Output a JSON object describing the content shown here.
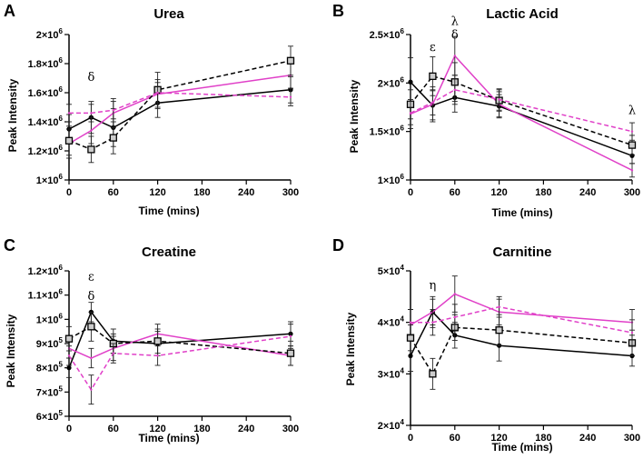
{
  "colors": {
    "black": "#000000",
    "magenta": "#e040c8",
    "marker_fill": "#cccccc"
  },
  "series_legend": [
    {
      "name": "solid-black",
      "color": "#000000",
      "dash": "solid",
      "marker": "circle"
    },
    {
      "name": "solid-magenta",
      "color": "#e040c8",
      "dash": "solid",
      "marker": "none"
    },
    {
      "name": "dashed-black",
      "color": "#000000",
      "dash": "dashed",
      "marker": "square"
    },
    {
      "name": "dashed-magenta",
      "color": "#e040c8",
      "dash": "dashed",
      "marker": "none"
    }
  ],
  "chart_data": [
    {
      "panel": "A",
      "type": "line",
      "title": "Urea",
      "xlabel": "Time (mins)",
      "ylabel": "Peak Intensity",
      "x": [
        0,
        30,
        60,
        120,
        300
      ],
      "xticks": [
        "0",
        "60",
        "120",
        "180",
        "240",
        "300"
      ],
      "xtick_values": [
        0,
        60,
        120,
        180,
        240,
        300
      ],
      "ylim": [
        1000000,
        2000000
      ],
      "yticks": [
        1000000,
        1200000,
        1400000,
        1600000,
        1800000,
        2000000
      ],
      "ytick_mant": [
        "1",
        "1.2",
        "1.4",
        "1.6",
        "1.8",
        "2"
      ],
      "ytick_exp": [
        "6",
        "6",
        "6",
        "6",
        "6",
        "6"
      ],
      "series": [
        {
          "name": "solid-black",
          "values": [
            1350000,
            1430000,
            1360000,
            1530000,
            1620000
          ],
          "err": [
            100000,
            110000,
            130000,
            100000,
            90000
          ]
        },
        {
          "name": "solid-magenta",
          "values": [
            1250000,
            1340000,
            1460000,
            1590000,
            1720000
          ],
          "err": [
            100000,
            90000,
            100000,
            100000,
            90000
          ]
        },
        {
          "name": "dashed-black",
          "values": [
            1270000,
            1210000,
            1290000,
            1620000,
            1820000
          ],
          "err": [
            100000,
            90000,
            110000,
            120000,
            100000
          ]
        },
        {
          "name": "dashed-magenta",
          "values": [
            1460000,
            1460000,
            1480000,
            1600000,
            1570000
          ],
          "err": [
            60000,
            60000,
            60000,
            70000,
            60000
          ]
        }
      ],
      "annotations": [
        {
          "text": "δ",
          "x": 30,
          "y": 1680000
        }
      ]
    },
    {
      "panel": "B",
      "type": "line",
      "title": "Lactic Acid",
      "xlabel": "Time (mins)",
      "ylabel": "Peak Intensity",
      "x": [
        0,
        30,
        60,
        120,
        300
      ],
      "xticks": [
        "0",
        "60",
        "120",
        "180",
        "240",
        "300"
      ],
      "xtick_values": [
        0,
        60,
        120,
        180,
        240,
        300
      ],
      "ylim": [
        1000000,
        2500000
      ],
      "yticks": [
        1000000,
        1500000,
        2000000,
        2500000
      ],
      "ytick_mant": [
        "1",
        "1.5",
        "2",
        "2.5"
      ],
      "ytick_exp": [
        "6",
        "6",
        "6",
        "6"
      ],
      "series": [
        {
          "name": "solid-black",
          "values": [
            2010000,
            1770000,
            1850000,
            1760000,
            1250000
          ],
          "err": [
            250000,
            150000,
            150000,
            120000,
            80000
          ]
        },
        {
          "name": "solid-magenta",
          "values": [
            1680000,
            1780000,
            2280000,
            1780000,
            1100000
          ],
          "err": [
            150000,
            180000,
            200000,
            130000,
            70000
          ]
        },
        {
          "name": "dashed-black",
          "values": [
            1780000,
            2070000,
            2010000,
            1820000,
            1360000
          ],
          "err": [
            150000,
            200000,
            200000,
            110000,
            100000
          ]
        },
        {
          "name": "dashed-magenta",
          "values": [
            1690000,
            1800000,
            1930000,
            1830000,
            1500000
          ],
          "err": [
            120000,
            130000,
            150000,
            110000,
            90000
          ]
        }
      ],
      "annotations": [
        {
          "text": "ε",
          "x": 30,
          "y": 2330000
        },
        {
          "text": "λ",
          "x": 60,
          "y": 2600000
        },
        {
          "text": "δ",
          "x": 60,
          "y": 2460000
        },
        {
          "text": "λ",
          "x": 300,
          "y": 1680000
        }
      ]
    },
    {
      "panel": "C",
      "type": "line",
      "title": "Creatine",
      "xlabel": "Time (mins)",
      "ylabel": "Peak Intensity",
      "x": [
        0,
        30,
        60,
        120,
        300
      ],
      "xticks": [
        "0",
        "60",
        "120",
        "180",
        "240",
        "300"
      ],
      "xtick_values": [
        0,
        60,
        120,
        180,
        240,
        300
      ],
      "ylim": [
        600000,
        1200000
      ],
      "yticks": [
        600000,
        700000,
        800000,
        900000,
        1000000,
        1100000,
        1200000
      ],
      "ytick_mant": [
        "6",
        "7",
        "8",
        "9",
        "1",
        "1.1",
        "1.2"
      ],
      "ytick_exp": [
        "5",
        "5",
        "5",
        "5",
        "6",
        "6",
        "6"
      ],
      "series": [
        {
          "name": "solid-black",
          "values": [
            800000,
            1030000,
            910000,
            900000,
            940000
          ],
          "err": [
            40000,
            40000,
            50000,
            50000,
            50000
          ]
        },
        {
          "name": "solid-magenta",
          "values": [
            880000,
            840000,
            880000,
            940000,
            850000
          ],
          "err": [
            40000,
            40000,
            50000,
            40000,
            40000
          ]
        },
        {
          "name": "dashed-black",
          "values": [
            920000,
            970000,
            900000,
            910000,
            860000
          ],
          "err": [
            50000,
            60000,
            40000,
            50000,
            50000
          ]
        },
        {
          "name": "dashed-magenta",
          "values": [
            850000,
            710000,
            860000,
            850000,
            930000
          ],
          "err": [
            40000,
            60000,
            40000,
            40000,
            50000
          ]
        }
      ],
      "annotations": [
        {
          "text": "ε",
          "x": 30,
          "y": 1160000
        },
        {
          "text": "δ",
          "x": 30,
          "y": 1080000
        }
      ]
    },
    {
      "panel": "D",
      "type": "line",
      "title": "Carnitine",
      "xlabel": "Time (mins)",
      "ylabel": "Peak Intensity",
      "x": [
        0,
        30,
        60,
        120,
        300
      ],
      "xticks": [
        "0",
        "60",
        "120",
        "180",
        "240",
        "300"
      ],
      "xtick_values": [
        0,
        60,
        120,
        180,
        240,
        300
      ],
      "ylim": [
        20000,
        50000
      ],
      "yticks": [
        20000,
        30000,
        40000,
        50000
      ],
      "ytick_mant": [
        "2",
        "3",
        "4",
        "5"
      ],
      "ytick_exp": [
        "4",
        "4",
        "4",
        "4"
      ],
      "series": [
        {
          "name": "solid-black",
          "values": [
            33500,
            42000,
            37500,
            35500,
            33500
          ],
          "err": [
            3000,
            2500,
            2500,
            3000,
            2000
          ]
        },
        {
          "name": "solid-magenta",
          "values": [
            39500,
            42000,
            45500,
            42000,
            40000
          ],
          "err": [
            3000,
            3000,
            3500,
            2500,
            2500
          ]
        },
        {
          "name": "dashed-black",
          "values": [
            37000,
            30000,
            39000,
            38500,
            36000
          ],
          "err": [
            2500,
            3000,
            2500,
            3000,
            2500
          ]
        },
        {
          "name": "dashed-magenta",
          "values": [
            40000,
            40000,
            41000,
            43000,
            38000
          ],
          "err": [
            2500,
            2500,
            2500,
            2000,
            2500
          ]
        }
      ],
      "annotations": [
        {
          "text": "η",
          "x": 30,
          "y": 46500
        }
      ]
    }
  ]
}
